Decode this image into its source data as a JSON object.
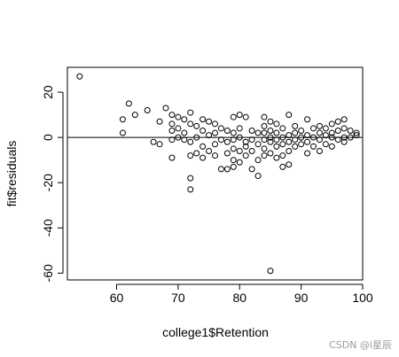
{
  "chart_data": {
    "type": "scatter",
    "xlabel": "college1$Retention",
    "ylabel": "fit$residuals",
    "xlim": [
      52,
      100
    ],
    "ylim": [
      -63,
      31
    ],
    "xticks": [
      60,
      70,
      80,
      90,
      100
    ],
    "yticks": [
      20,
      0,
      -20,
      -40,
      -60
    ],
    "reference_line_y": 0,
    "marker": "open-circle",
    "colors": {
      "axis": "#000000",
      "point": "#000000",
      "background": "#ffffff"
    },
    "points": [
      [
        54,
        27
      ],
      [
        61,
        8
      ],
      [
        61,
        2
      ],
      [
        62,
        15
      ],
      [
        63,
        10
      ],
      [
        65,
        12
      ],
      [
        66,
        -2
      ],
      [
        67,
        -3
      ],
      [
        67,
        7
      ],
      [
        68,
        13
      ],
      [
        69,
        10
      ],
      [
        69,
        6
      ],
      [
        69,
        3
      ],
      [
        69,
        -1
      ],
      [
        69,
        -9
      ],
      [
        70,
        9
      ],
      [
        70,
        4
      ],
      [
        70,
        0
      ],
      [
        71,
        8
      ],
      [
        71,
        2
      ],
      [
        71,
        -1
      ],
      [
        72,
        11
      ],
      [
        72,
        6
      ],
      [
        72,
        -2
      ],
      [
        72,
        -8
      ],
      [
        72,
        -18
      ],
      [
        72,
        -23
      ],
      [
        73,
        5
      ],
      [
        73,
        0
      ],
      [
        73,
        -7
      ],
      [
        74,
        8
      ],
      [
        74,
        3
      ],
      [
        74,
        -4
      ],
      [
        74,
        -9
      ],
      [
        75,
        7
      ],
      [
        75,
        1
      ],
      [
        75,
        -6
      ],
      [
        76,
        6
      ],
      [
        76,
        2
      ],
      [
        76,
        -3
      ],
      [
        76,
        -8
      ],
      [
        77,
        4
      ],
      [
        77,
        -1
      ],
      [
        77,
        -14
      ],
      [
        78,
        3
      ],
      [
        78,
        -2
      ],
      [
        78,
        -7
      ],
      [
        78,
        -14
      ],
      [
        79,
        9
      ],
      [
        79,
        2
      ],
      [
        79,
        -1
      ],
      [
        79,
        -5
      ],
      [
        79,
        -10
      ],
      [
        79,
        -13
      ],
      [
        80,
        10
      ],
      [
        80,
        4
      ],
      [
        80,
        0
      ],
      [
        80,
        -6
      ],
      [
        80,
        -11
      ],
      [
        81,
        9
      ],
      [
        81,
        -2
      ],
      [
        81,
        -4
      ],
      [
        81,
        -8
      ],
      [
        82,
        3
      ],
      [
        82,
        -1
      ],
      [
        82,
        -6
      ],
      [
        82,
        -14
      ],
      [
        83,
        2
      ],
      [
        83,
        -3
      ],
      [
        83,
        -10
      ],
      [
        83,
        -17
      ],
      [
        84,
        9
      ],
      [
        84,
        5
      ],
      [
        84,
        2
      ],
      [
        84,
        -1
      ],
      [
        84,
        -5
      ],
      [
        84,
        -8
      ],
      [
        85,
        7
      ],
      [
        85,
        3
      ],
      [
        85,
        0
      ],
      [
        85,
        -2
      ],
      [
        85,
        -7
      ],
      [
        85,
        -59
      ],
      [
        86,
        6
      ],
      [
        86,
        2
      ],
      [
        86,
        -1
      ],
      [
        86,
        -4
      ],
      [
        86,
        -9
      ],
      [
        87,
        4
      ],
      [
        87,
        0
      ],
      [
        87,
        -3
      ],
      [
        87,
        -8
      ],
      [
        87,
        -13
      ],
      [
        88,
        10
      ],
      [
        88,
        1
      ],
      [
        88,
        -2
      ],
      [
        88,
        -6
      ],
      [
        88,
        -12
      ],
      [
        89,
        5
      ],
      [
        89,
        2
      ],
      [
        89,
        -1
      ],
      [
        89,
        -4
      ],
      [
        90,
        3
      ],
      [
        90,
        0
      ],
      [
        90,
        -3
      ],
      [
        91,
        8
      ],
      [
        91,
        1
      ],
      [
        91,
        -2
      ],
      [
        91,
        -7
      ],
      [
        92,
        4
      ],
      [
        92,
        0
      ],
      [
        92,
        -4
      ],
      [
        93,
        5
      ],
      [
        93,
        2
      ],
      [
        93,
        -1
      ],
      [
        93,
        -6
      ],
      [
        94,
        4
      ],
      [
        94,
        1
      ],
      [
        94,
        -3
      ],
      [
        95,
        6
      ],
      [
        95,
        2
      ],
      [
        95,
        0
      ],
      [
        95,
        -4
      ],
      [
        96,
        7
      ],
      [
        96,
        3
      ],
      [
        96,
        -1
      ],
      [
        97,
        8
      ],
      [
        97,
        4
      ],
      [
        97,
        0
      ],
      [
        97,
        -2
      ],
      [
        98,
        3
      ],
      [
        98,
        0
      ],
      [
        99,
        2
      ],
      [
        99,
        1
      ]
    ]
  },
  "watermark": "CSDN @l星辰"
}
